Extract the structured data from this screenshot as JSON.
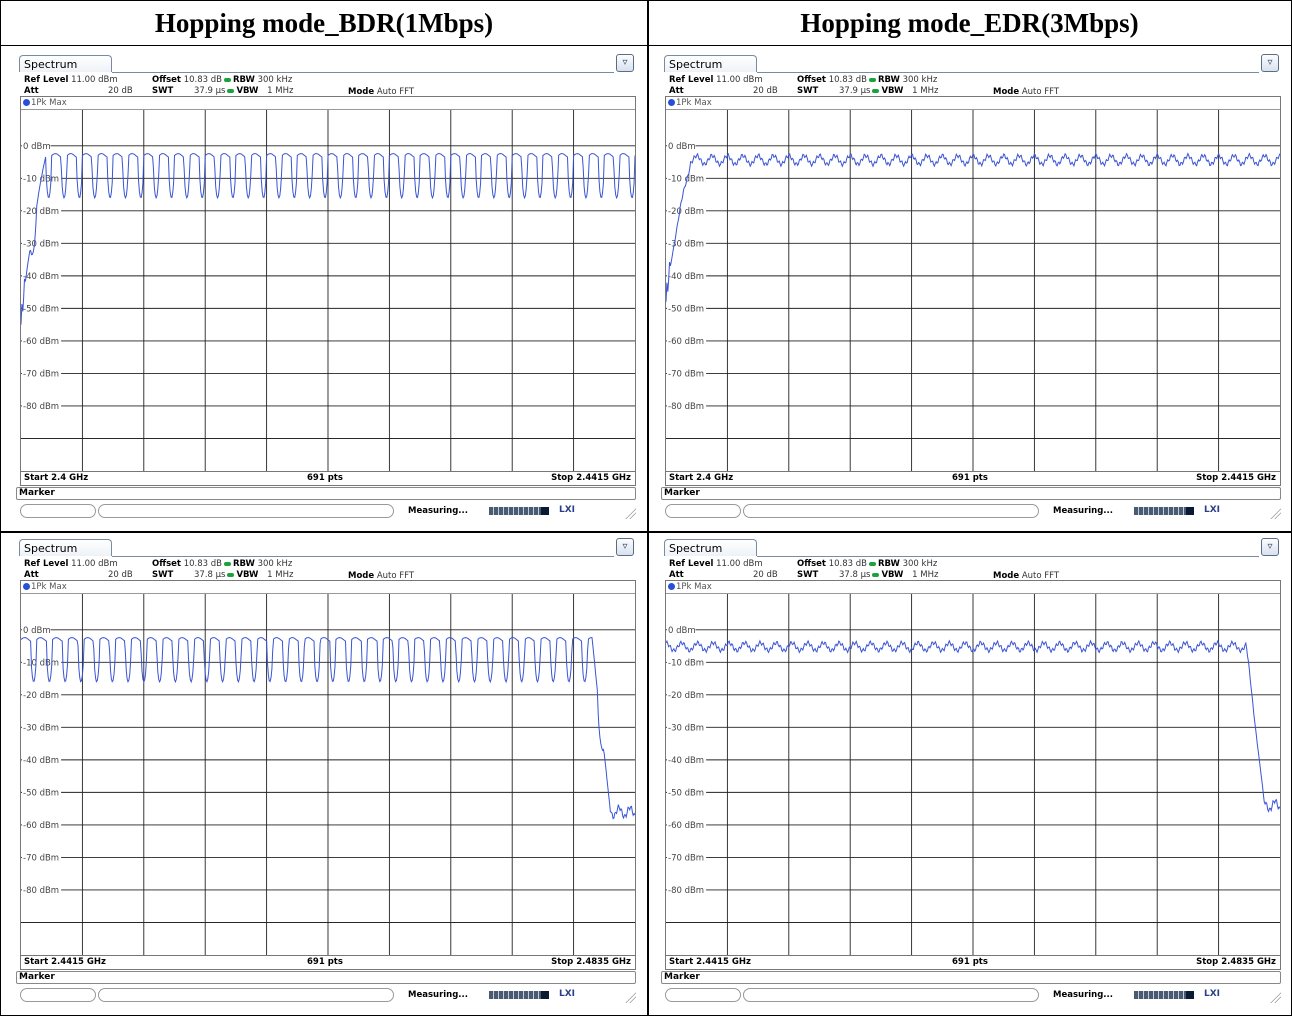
{
  "headers": [
    "Hopping mode_BDR(1Mbps)",
    "Hopping mode_EDR(3Mbps)"
  ],
  "panels": [
    {
      "tab": "Spectrum",
      "ref_level_label": "Ref Level",
      "ref_level": "11.00 dBm",
      "att_label": "Att",
      "att": "20 dB",
      "offset_label": "Offset",
      "offset": "10.83 dB",
      "swt_label": "SWT",
      "swt": "37.9 µs",
      "rbw_label": "RBW",
      "rbw": "300 kHz",
      "vbw_label": "VBW",
      "vbw": "1 MHz",
      "mode_label": "Mode",
      "mode": "Auto FFT",
      "trace": "1Pk Max",
      "start": "Start 2.4 GHz",
      "pts": "691 pts",
      "stop": "Stop 2.4415 GHz",
      "marker": "Marker",
      "measuring": "Measuring...",
      "lxi": "LXI",
      "y_labels": [
        "0 dBm",
        "-10 dBm",
        "-20 dBm",
        "-30 dBm",
        "-40 dBm",
        "-50 dBm",
        "-60 dBm",
        "-70 dBm",
        "-80 dBm"
      ]
    },
    {
      "tab": "Spectrum",
      "ref_level_label": "Ref Level",
      "ref_level": "11.00 dBm",
      "att_label": "Att",
      "att": "20 dB",
      "offset_label": "Offset",
      "offset": "10.83 dB",
      "swt_label": "SWT",
      "swt": "37.9 µs",
      "rbw_label": "RBW",
      "rbw": "300 kHz",
      "vbw_label": "VBW",
      "vbw": "1 MHz",
      "mode_label": "Mode",
      "mode": "Auto FFT",
      "trace": "1Pk Max",
      "start": "Start 2.4 GHz",
      "pts": "691 pts",
      "stop": "Stop 2.4415 GHz",
      "marker": "Marker",
      "measuring": "Measuring...",
      "lxi": "LXI",
      "y_labels": [
        "0 dBm",
        "-10 dBm",
        "-20 dBm",
        "-30 dBm",
        "-40 dBm",
        "-50 dBm",
        "-60 dBm",
        "-70 dBm",
        "-80 dBm"
      ]
    },
    {
      "tab": "Spectrum",
      "ref_level_label": "Ref Level",
      "ref_level": "11.00 dBm",
      "att_label": "Att",
      "att": "20 dB",
      "offset_label": "Offset",
      "offset": "10.83 dB",
      "swt_label": "SWT",
      "swt": "37.8 µs",
      "rbw_label": "RBW",
      "rbw": "300 kHz",
      "vbw_label": "VBW",
      "vbw": "1 MHz",
      "mode_label": "Mode",
      "mode": "Auto FFT",
      "trace": "1Pk Max",
      "start": "Start 2.4415 GHz",
      "pts": "691 pts",
      "stop": "Stop 2.4835 GHz",
      "marker": "Marker",
      "measuring": "Measuring...",
      "lxi": "LXI",
      "y_labels": [
        "0 dBm",
        "-10 dBm",
        "-20 dBm",
        "-30 dBm",
        "-40 dBm",
        "-50 dBm",
        "-60 dBm",
        "-70 dBm",
        "-80 dBm"
      ]
    },
    {
      "tab": "Spectrum",
      "ref_level_label": "Ref Level",
      "ref_level": "11.00 dBm",
      "att_label": "Att",
      "att": "20 dB",
      "offset_label": "Offset",
      "offset": "10.83 dB",
      "swt_label": "SWT",
      "swt": "37.8 µs",
      "rbw_label": "RBW",
      "rbw": "300 kHz",
      "vbw_label": "VBW",
      "vbw": "1 MHz",
      "mode_label": "Mode",
      "mode": "Auto FFT",
      "trace": "1Pk Max",
      "start": "Start 2.4415 GHz",
      "pts": "691 pts",
      "stop": "Stop 2.4835 GHz",
      "marker": "Marker",
      "measuring": "Measuring...",
      "lxi": "LXI",
      "y_labels": [
        "0 dBm",
        "-10 dBm",
        "-20 dBm",
        "-30 dBm",
        "-40 dBm",
        "-50 dBm",
        "-60 dBm",
        "-70 dBm",
        "-80 dBm"
      ]
    }
  ],
  "chart_data": [
    {
      "type": "line",
      "x_range_ghz": [
        2.4,
        2.4415
      ],
      "ylim_dbm": [
        -100,
        11
      ],
      "grid": true,
      "series": [
        {
          "style": "bdr",
          "channels": 40,
          "peak_dbm": -3,
          "valley_dbm": -15.5,
          "start_rise": {
            "from_dbm": -55,
            "to_dbm": -3,
            "over_fraction": 0.04
          }
        }
      ]
    },
    {
      "type": "line",
      "x_range_ghz": [
        2.4,
        2.4415
      ],
      "ylim_dbm": [
        -100,
        11
      ],
      "grid": true,
      "series": [
        {
          "style": "edr",
          "channels": 40,
          "peak_dbm": -3,
          "valley_dbm": -7.5,
          "start_rise": {
            "from_dbm": -48,
            "to_dbm": -4,
            "over_fraction": 0.04
          }
        }
      ]
    },
    {
      "type": "line",
      "x_range_ghz": [
        2.4415,
        2.4835
      ],
      "ylim_dbm": [
        -100,
        11
      ],
      "grid": true,
      "series": [
        {
          "style": "bdr",
          "channels": 39,
          "peak_dbm": -3,
          "valley_dbm": -15.5,
          "edge_drop": {
            "at_fraction": 0.93,
            "to_dbm": -56,
            "over_fraction": 0.03
          }
        }
      ]
    },
    {
      "type": "line",
      "x_range_ghz": [
        2.4415,
        2.4835
      ],
      "ylim_dbm": [
        -100,
        11
      ],
      "grid": true,
      "series": [
        {
          "style": "edr",
          "channels": 39,
          "peak_dbm": -4,
          "valley_dbm": -8,
          "edge_drop": {
            "at_fraction": 0.945,
            "to_dbm": -54,
            "over_fraction": 0.03
          }
        }
      ]
    }
  ]
}
